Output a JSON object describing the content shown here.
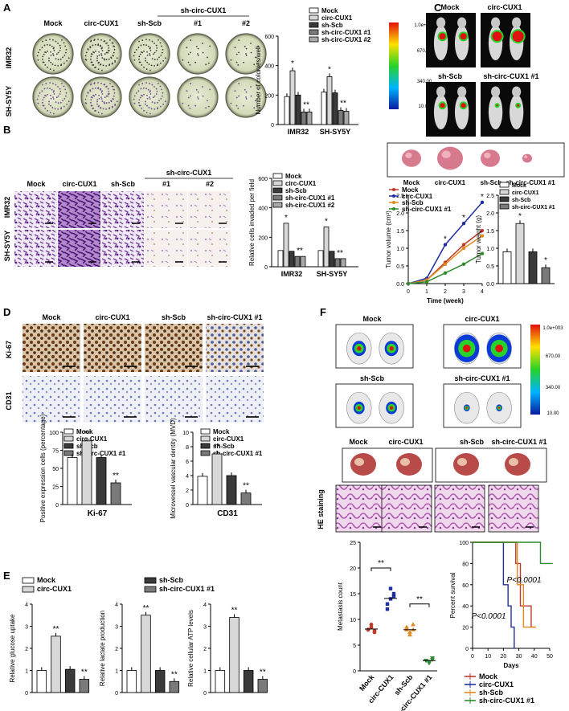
{
  "panel_letters": [
    "A",
    "B",
    "C",
    "D",
    "E",
    "F"
  ],
  "colors": {
    "mock": "#ffffff",
    "circ": "#d8d8d8",
    "scb": "#3a3a3a",
    "sh1": "#7a7a7a",
    "sh2": "#a8a8a8",
    "red": "#c0392b",
    "blue": "#1f2fa0",
    "orange": "#e08a1e",
    "green": "#2e8b2e"
  },
  "A": {
    "col_labels": [
      "Mock",
      "circ-CUX1",
      "sh-Scb",
      "#1",
      "#2"
    ],
    "group_label": "sh-circ-CUX1",
    "row_labels": [
      "IMR32",
      "SH-SY5Y"
    ],
    "legend": [
      "Mock",
      "circ-CUX1",
      "sh-Scb",
      "sh-circ-CUX1 #1",
      "sh-circ-CUX1 #2"
    ]
  },
  "B": {
    "col_labels": [
      "Mock",
      "circ-CUX1",
      "sh-Scb",
      "#1",
      "#2"
    ],
    "group_label": "sh-circ-CUX1",
    "row_labels": [
      "IMR32",
      "SH-SY5Y"
    ],
    "legend": [
      "Mock",
      "circ-CUX1",
      "sh-Scb",
      "sh-circ-CUX1 #1",
      "sh-circ-CUX1 #2"
    ]
  },
  "C": {
    "top_labels": [
      "Mock",
      "circ-CUX1"
    ],
    "bottom_labels": [
      "sh-Scb",
      "sh-circ-CUX1 #1"
    ],
    "scale_ticks": [
      "1.0e+003",
      "670.00",
      "340.00",
      "10.00"
    ],
    "tumor_labels": [
      "Mock",
      "circ-CUX1",
      "sh-Scb",
      "sh-circ-CUX1 #1"
    ],
    "legend": [
      "Mock",
      "circ-CUX1",
      "sh-Scb",
      "sh-circ-CUX1 #1"
    ],
    "legend2": [
      "Mock",
      "circ-CUX1",
      "sh-Scb",
      "sh-circ-CUX1 #1"
    ]
  },
  "D": {
    "col_labels": [
      "Mock",
      "circ-CUX1",
      "sh-Scb",
      "sh-circ-CUX1 #1"
    ],
    "row_labels": [
      "Ki-67",
      "CD31"
    ],
    "legend": [
      "Mock",
      "circ-CUX1",
      "sh-Scb",
      "sh-circ-CUX1 #1"
    ]
  },
  "E": {
    "legend": [
      "Mock",
      "circ-CUX1",
      "sh-Scb",
      "sh-circ-CUX1 #1"
    ]
  },
  "F": {
    "top_labels": [
      "Mock",
      "circ-CUX1"
    ],
    "bottom_labels": [
      "sh-Scb",
      "sh-circ-CUX1 #1"
    ],
    "scale_ticks": [
      "1.0e+003",
      "670.00",
      "340.00",
      "10.00"
    ],
    "lung_labels": [
      "Mock",
      "circ-CUX1",
      "sh-Scb",
      "sh-circ-CUX1 #1"
    ],
    "he_label": "HE staining",
    "legend": [
      "Mock",
      "circ-CUX1",
      "sh-Scb",
      "sh-circ-CUX1 #1"
    ],
    "p_labels": [
      "P<0.0001",
      "P<0.0001"
    ]
  },
  "chart_data": [
    {
      "id": "A-colonies",
      "type": "bar",
      "ylabel": "Number of colonies/well",
      "ylim": [
        0,
        600
      ],
      "yticks": [
        0,
        200,
        400,
        600
      ],
      "categories": [
        "IMR32",
        "SH-SY5Y"
      ],
      "series": [
        {
          "name": "Mock",
          "values": [
            190,
            220
          ]
        },
        {
          "name": "circ-CUX1",
          "values": [
            365,
            325
          ]
        },
        {
          "name": "sh-Scb",
          "values": [
            200,
            215
          ]
        },
        {
          "name": "sh-circ-CUX1 #1",
          "values": [
            85,
            95
          ]
        },
        {
          "name": "sh-circ-CUX1 #2",
          "values": [
            85,
            90
          ]
        }
      ],
      "markers": [
        {
          "group": 0,
          "series": 1,
          "text": "*"
        },
        {
          "group": 0,
          "series": 3,
          "text": "**"
        },
        {
          "group": 1,
          "series": 1,
          "text": "*"
        },
        {
          "group": 1,
          "series": 3,
          "text": "**"
        }
      ]
    },
    {
      "id": "B-invasion",
      "type": "bar",
      "ylabel": "Relative cells invaded per field",
      "ylim": [
        0,
        600
      ],
      "yticks": [
        0,
        200,
        400,
        600
      ],
      "categories": [
        "IMR32",
        "SH-SY5Y"
      ],
      "series": [
        {
          "name": "Mock",
          "values": [
            110,
            110
          ]
        },
        {
          "name": "circ-CUX1",
          "values": [
            295,
            270
          ]
        },
        {
          "name": "sh-Scb",
          "values": [
            105,
            105
          ]
        },
        {
          "name": "sh-circ-CUX1 #1",
          "values": [
            70,
            55
          ]
        },
        {
          "name": "sh-circ-CUX1 #2",
          "values": [
            70,
            55
          ]
        }
      ],
      "markers": [
        {
          "group": 0,
          "series": 1,
          "text": "*"
        },
        {
          "group": 0,
          "series": 3,
          "text": "**"
        },
        {
          "group": 1,
          "series": 1,
          "text": "*"
        },
        {
          "group": 1,
          "series": 3,
          "text": "**"
        }
      ]
    },
    {
      "id": "C-volume",
      "type": "line",
      "xlabel": "Time (week)",
      "ylabel": "Tumor volume (cm³)",
      "x": [
        0,
        1,
        2,
        3,
        4
      ],
      "ylim": [
        0,
        2.5
      ],
      "yticks": [
        0,
        0.5,
        1.0,
        1.5,
        2.0,
        2.5
      ],
      "series": [
        {
          "name": "Mock",
          "values": [
            0,
            0.1,
            0.6,
            1.1,
            1.5
          ]
        },
        {
          "name": "circ-CUX1",
          "values": [
            0,
            0.15,
            1.1,
            1.7,
            2.3
          ]
        },
        {
          "name": "sh-Scb",
          "values": [
            0,
            0.1,
            0.55,
            1.0,
            1.35
          ]
        },
        {
          "name": "sh-circ-CUX1 #1",
          "values": [
            0,
            0.05,
            0.3,
            0.55,
            0.85
          ]
        }
      ]
    },
    {
      "id": "C-weight",
      "type": "bar",
      "ylabel": "Tumor weight (g)",
      "ylim": [
        0,
        2.5
      ],
      "yticks": [
        0,
        0.5,
        1.0,
        1.5,
        2.0,
        2.5
      ],
      "categories": [
        "Mock",
        "circ-CUX1",
        "sh-Scb",
        "sh-circ-CUX1 #1"
      ],
      "values": [
        0.9,
        1.7,
        0.9,
        0.45
      ]
    },
    {
      "id": "D-ki67",
      "type": "bar",
      "ylabel": "Positive expression cells (percentage)",
      "xlabel": "Ki-67",
      "ylim": [
        0,
        100
      ],
      "yticks": [
        0,
        25,
        50,
        75,
        100
      ],
      "categories": [
        "Mock",
        "circ-CUX1",
        "sh-Scb",
        "sh-circ-CUX1 #1"
      ],
      "values": [
        65,
        88,
        65,
        30
      ]
    },
    {
      "id": "D-cd31",
      "type": "bar",
      "ylabel": "Microvessel vascular dentity (MVD)",
      "xlabel": "CD31",
      "ylim": [
        0,
        10
      ],
      "yticks": [
        0,
        2,
        4,
        6,
        8,
        10
      ],
      "categories": [
        "Mock",
        "circ-CUX1",
        "sh-Scb",
        "sh-circ-CUX1 #1"
      ],
      "values": [
        3.9,
        7.0,
        4.0,
        1.6
      ]
    },
    {
      "id": "E-glucose",
      "type": "bar",
      "ylabel": "Relative glucose uptake",
      "ylim": [
        0,
        4
      ],
      "yticks": [
        0,
        1,
        2,
        3,
        4
      ],
      "categories": [
        "Mock",
        "circ-CUX1",
        "sh-Scb",
        "sh-circ-CUX1 #1"
      ],
      "values": [
        1.0,
        2.55,
        1.05,
        0.6
      ]
    },
    {
      "id": "E-lactate",
      "type": "bar",
      "ylabel": "Relative lactate production",
      "ylim": [
        0,
        4
      ],
      "yticks": [
        0,
        1,
        2,
        3,
        4
      ],
      "categories": [
        "Mock",
        "circ-CUX1",
        "sh-Scb",
        "sh-circ-CUX1 #1"
      ],
      "values": [
        1.0,
        3.5,
        1.0,
        0.5
      ]
    },
    {
      "id": "E-atp",
      "type": "bar",
      "ylabel": "Relative cellular ATP levels",
      "ylim": [
        0,
        4
      ],
      "yticks": [
        0,
        1,
        2,
        3,
        4
      ],
      "categories": [
        "Mock",
        "circ-CUX1",
        "sh-Scb",
        "sh-circ-CUX1 #1"
      ],
      "values": [
        1.0,
        3.4,
        1.0,
        0.6
      ]
    },
    {
      "id": "F-metastasis",
      "type": "scatter",
      "ylabel": "Metastasis count",
      "ylim": [
        0,
        25
      ],
      "yticks": [
        0,
        5,
        10,
        15,
        20,
        25
      ],
      "categories": [
        "Mock",
        "circ-CUX1",
        "sh-Scb",
        "sh-circ-CUX1 #1"
      ],
      "points": [
        [
          8,
          8.5,
          7.5,
          8,
          9,
          7.8
        ],
        [
          12,
          14,
          15,
          13,
          16,
          14.5
        ],
        [
          8,
          7,
          9,
          8.5,
          7.5,
          8
        ],
        [
          2,
          1.5,
          2.5,
          2,
          1.8,
          2.2
        ]
      ]
    },
    {
      "id": "F-survival",
      "type": "line",
      "xlabel": "Days",
      "ylabel": "Percent survival",
      "x": [
        0,
        10,
        20,
        30,
        40,
        50
      ],
      "ylim": [
        0,
        100
      ],
      "yticks": [
        0,
        20,
        40,
        60,
        80,
        100
      ],
      "series": [
        {
          "name": "Mock",
          "steps": [
            [
              0,
              100
            ],
            [
              28,
              100
            ],
            [
              28,
              80
            ],
            [
              31,
              80
            ],
            [
              31,
              40
            ],
            [
              38,
              40
            ],
            [
              38,
              20
            ],
            [
              41,
              20
            ]
          ]
        },
        {
          "name": "circ-CUX1",
          "steps": [
            [
              0,
              100
            ],
            [
              20,
              100
            ],
            [
              20,
              60
            ],
            [
              23,
              60
            ],
            [
              23,
              40
            ],
            [
              25,
              40
            ],
            [
              25,
              20
            ],
            [
              27,
              20
            ],
            [
              27,
              0
            ]
          ]
        },
        {
          "name": "sh-Scb",
          "steps": [
            [
              0,
              100
            ],
            [
              29,
              100
            ],
            [
              29,
              60
            ],
            [
              33,
              60
            ],
            [
              33,
              20
            ],
            [
              41,
              20
            ]
          ]
        },
        {
          "name": "sh-circ-CUX1 #1",
          "steps": [
            [
              0,
              100
            ],
            [
              44,
              100
            ],
            [
              44,
              80
            ],
            [
              52,
              80
            ]
          ]
        }
      ]
    }
  ]
}
